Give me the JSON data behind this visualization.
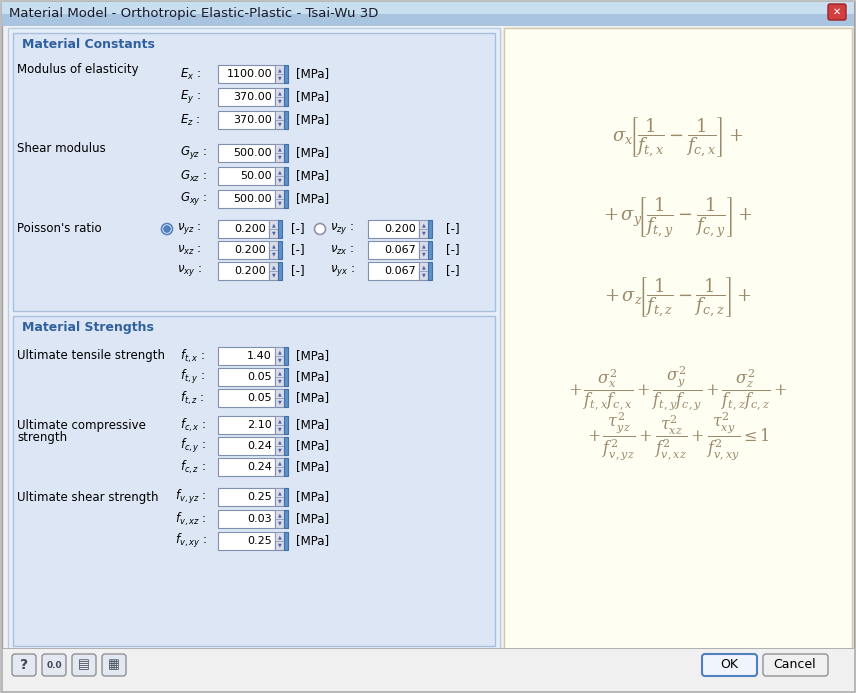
{
  "title": "Material Model - Orthotropic Elastic-Plastic - Tsai-Wu 3D",
  "bg_window": "#e8e8e8",
  "bg_left_panel": "#dce6f1",
  "bg_right_panel": "#fffef0",
  "title_bar_color": "#6fa8dc",
  "section_title_color": "#4472a8",
  "formula_color": "#9b8a6a",
  "material_constants_title": "Material Constants",
  "material_strengths_title": "Material Strengths",
  "ok_button": "OK",
  "cancel_button": "Cancel"
}
